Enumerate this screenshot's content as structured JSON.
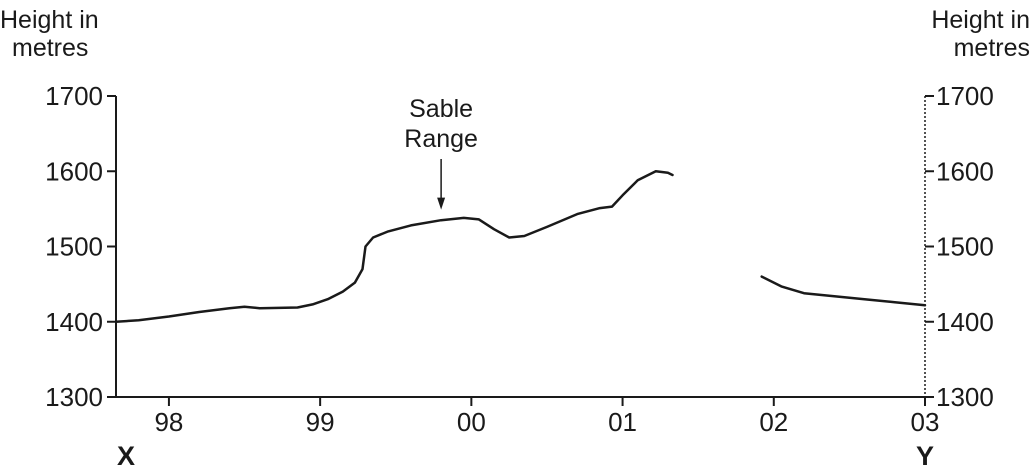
{
  "chart_data": {
    "type": "line",
    "left_axis_title": [
      "Height in",
      "metres"
    ],
    "right_axis_title": [
      "Height in",
      "metres"
    ],
    "ylim": [
      1300,
      1700
    ],
    "y_ticks": [
      1300,
      1400,
      1500,
      1600,
      1700
    ],
    "xlim": [
      97.65,
      103
    ],
    "x_ticks": [
      {
        "value": 98,
        "label": "98"
      },
      {
        "value": 99,
        "label": "99"
      },
      {
        "value": 100,
        "label": "00"
      },
      {
        "value": 101,
        "label": "01"
      },
      {
        "value": 102,
        "label": "02"
      },
      {
        "value": 103,
        "label": "03"
      }
    ],
    "x_end_labels": {
      "start": "X",
      "end": "Y"
    },
    "annotation": {
      "text": [
        "Sable",
        "Range"
      ],
      "x": 99.8,
      "y": 1545
    },
    "series": [
      {
        "values": [
          [
            97.65,
            1400
          ],
          [
            97.8,
            1402
          ],
          [
            98.0,
            1407
          ],
          [
            98.2,
            1413
          ],
          [
            98.4,
            1418
          ],
          [
            98.5,
            1420
          ],
          [
            98.6,
            1418
          ],
          [
            98.85,
            1419
          ],
          [
            98.95,
            1423
          ],
          [
            99.05,
            1430
          ],
          [
            99.15,
            1440
          ],
          [
            99.23,
            1452
          ],
          [
            99.28,
            1470
          ],
          [
            99.3,
            1500
          ],
          [
            99.35,
            1512
          ],
          [
            99.45,
            1520
          ],
          [
            99.6,
            1528
          ],
          [
            99.8,
            1535
          ],
          [
            99.95,
            1538
          ],
          [
            100.05,
            1536
          ],
          [
            100.15,
            1523
          ],
          [
            100.25,
            1512
          ],
          [
            100.35,
            1514
          ],
          [
            100.5,
            1526
          ],
          [
            100.7,
            1543
          ],
          [
            100.85,
            1551
          ],
          [
            100.93,
            1553
          ],
          [
            101.0,
            1568
          ],
          [
            101.1,
            1588
          ],
          [
            101.22,
            1600
          ],
          [
            101.3,
            1598
          ],
          [
            101.33,
            1595
          ]
        ]
      },
      {
        "values": [
          [
            101.92,
            1460
          ],
          [
            102.05,
            1447
          ],
          [
            102.2,
            1438
          ],
          [
            102.4,
            1434
          ],
          [
            102.6,
            1430
          ],
          [
            102.8,
            1426
          ],
          [
            103.0,
            1422
          ]
        ]
      }
    ],
    "grid": false
  }
}
